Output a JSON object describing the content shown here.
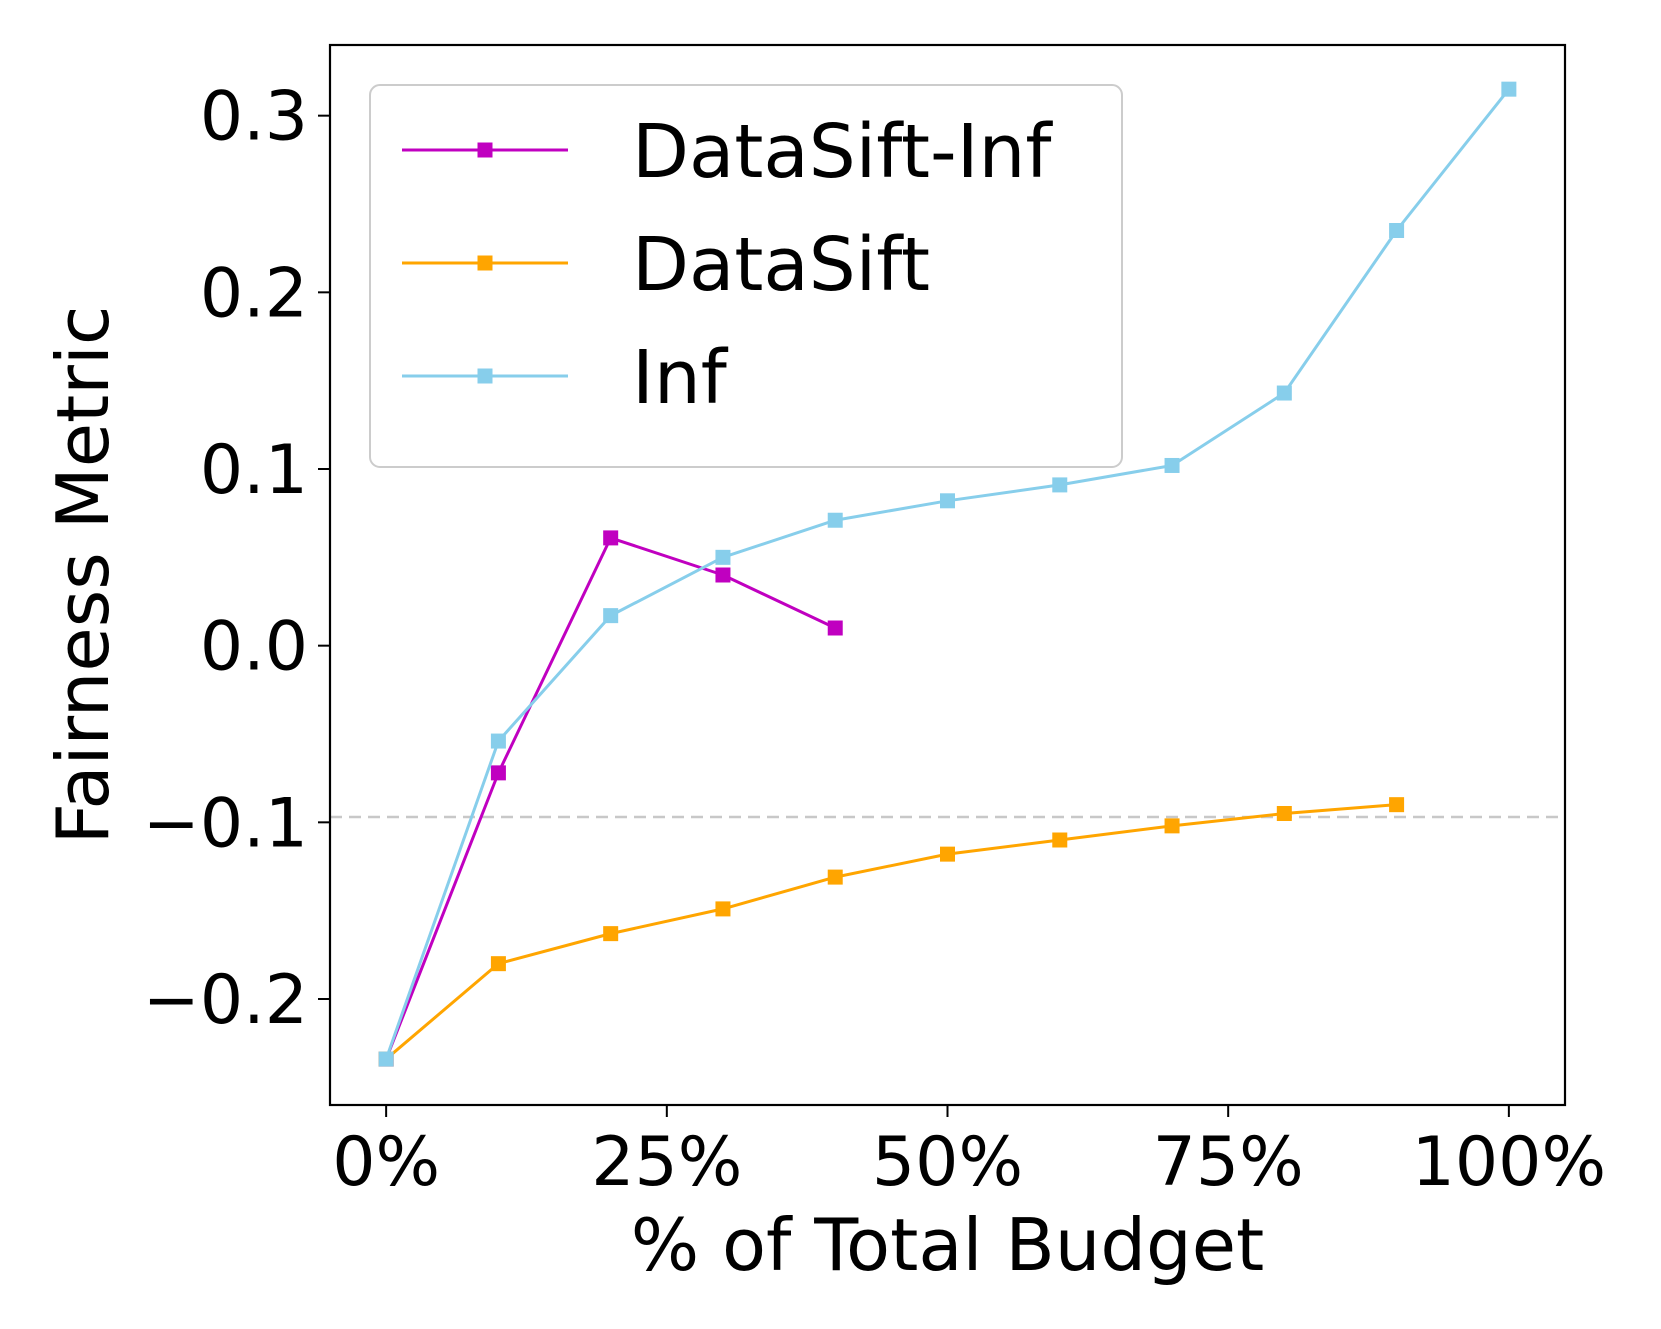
{
  "chart_data": {
    "type": "line",
    "title": "",
    "xlabel": "% of Total Budget",
    "ylabel": "Fairness Metric",
    "xlim": [
      -5,
      105
    ],
    "ylim": [
      -0.26,
      0.34
    ],
    "x_ticks": [
      0,
      25,
      50,
      75,
      100
    ],
    "x_tick_labels": [
      "0%",
      "25%",
      "50%",
      "75%",
      "100%"
    ],
    "y_ticks": [
      -0.2,
      -0.1,
      0.0,
      0.1,
      0.2,
      0.3
    ],
    "y_tick_labels": [
      "−0.2",
      "−0.1",
      "0.0",
      "0.1",
      "0.2",
      "0.3"
    ],
    "grid": false,
    "legend_position": "top-left",
    "reference_line": {
      "y": -0.097,
      "style": "dashed",
      "color": "#c8c8c8"
    },
    "series": [
      {
        "name": "DataSift-Inf",
        "color": "#c000c0",
        "marker": "square",
        "x": [
          0,
          10,
          20,
          30,
          40
        ],
        "y": [
          -0.234,
          -0.072,
          0.061,
          0.04,
          0.01
        ]
      },
      {
        "name": "DataSift",
        "color": "#ffa500",
        "marker": "square",
        "x": [
          0,
          10,
          20,
          30,
          40,
          50,
          60,
          70,
          80,
          90
        ],
        "y": [
          -0.234,
          -0.18,
          -0.163,
          -0.149,
          -0.131,
          -0.118,
          -0.11,
          -0.102,
          -0.095,
          -0.09
        ]
      },
      {
        "name": "Inf",
        "color": "#87ceeb",
        "marker": "square",
        "x": [
          0,
          10,
          20,
          30,
          40,
          50,
          60,
          70,
          80,
          90,
          100
        ],
        "y": [
          -0.234,
          -0.054,
          0.017,
          0.05,
          0.071,
          0.082,
          0.091,
          0.102,
          0.143,
          0.235,
          0.315
        ]
      }
    ]
  }
}
